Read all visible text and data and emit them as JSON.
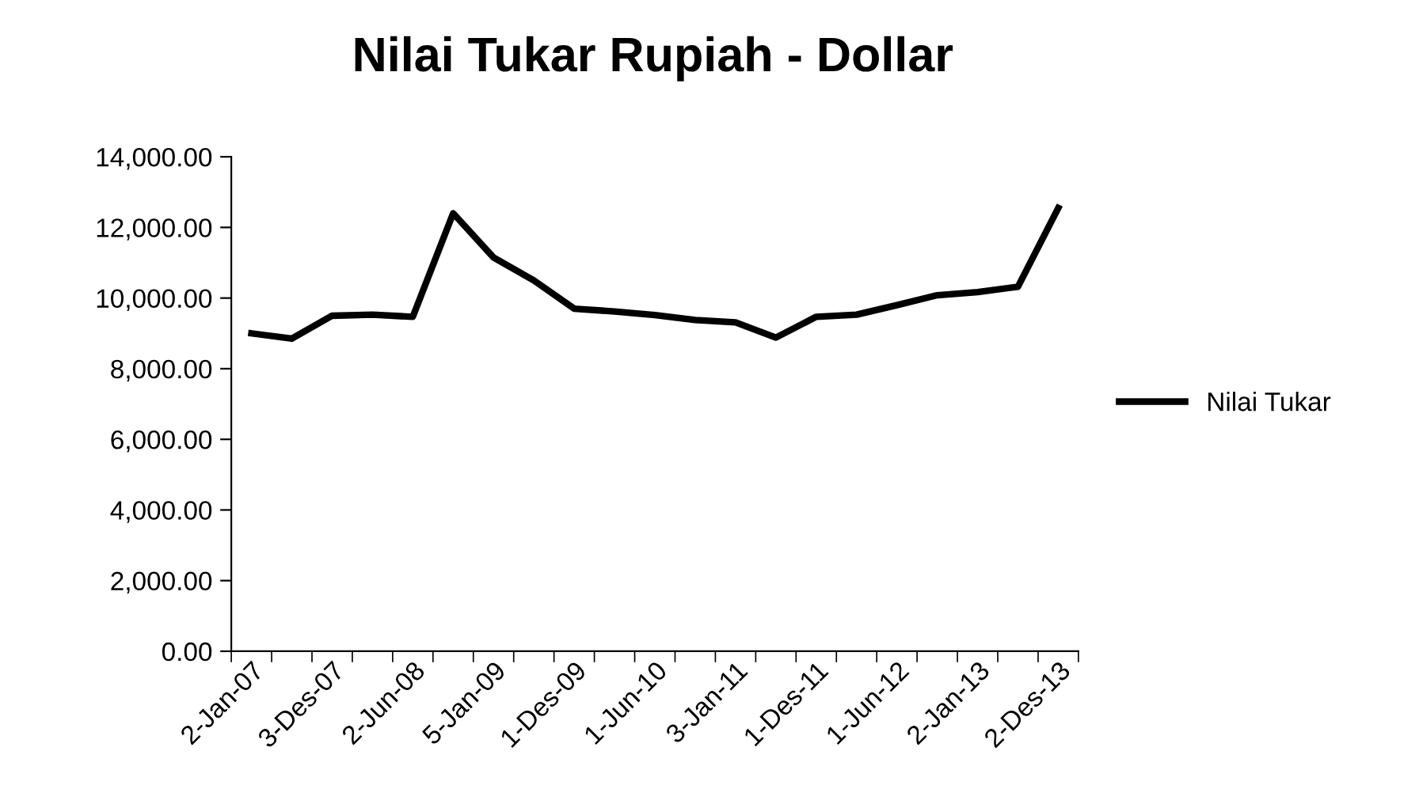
{
  "chart_data": {
    "type": "line",
    "title": "Nilai Tukar Rupiah - Dollar",
    "categories": [
      "2-Jan-07",
      null,
      "3-Des-07",
      null,
      "2-Jun-08",
      null,
      "5-Jan-09",
      null,
      "1-Des-09",
      null,
      "1-Jun-10",
      null,
      "3-Jan-11",
      null,
      "1-Des-11",
      null,
      "1-Jun-12",
      null,
      "2-Jan-13",
      null,
      "2-Des-13"
    ],
    "series": [
      {
        "name": "Nilai Tukar",
        "color": "#000000",
        "values": [
          9000,
          8850,
          9500,
          9530,
          9470,
          12400,
          11150,
          10500,
          9700,
          9620,
          9520,
          9380,
          9310,
          8880,
          9470,
          9530,
          9800,
          10080,
          10170,
          10320,
          12550
        ]
      }
    ],
    "ylim": [
      0,
      14000
    ],
    "yticks": [
      {
        "value": 0,
        "label": "0.00"
      },
      {
        "value": 2000,
        "label": "2,000.00"
      },
      {
        "value": 4000,
        "label": "4,000.00"
      },
      {
        "value": 6000,
        "label": "6,000.00"
      },
      {
        "value": 8000,
        "label": "8,000.00"
      },
      {
        "value": 10000,
        "label": "10,000.00"
      },
      {
        "value": 12000,
        "label": "12,000.00"
      },
      {
        "value": 14000,
        "label": "14,000.00"
      }
    ],
    "grid": false,
    "legend": "right",
    "marker": "none",
    "line_style": "solid"
  }
}
